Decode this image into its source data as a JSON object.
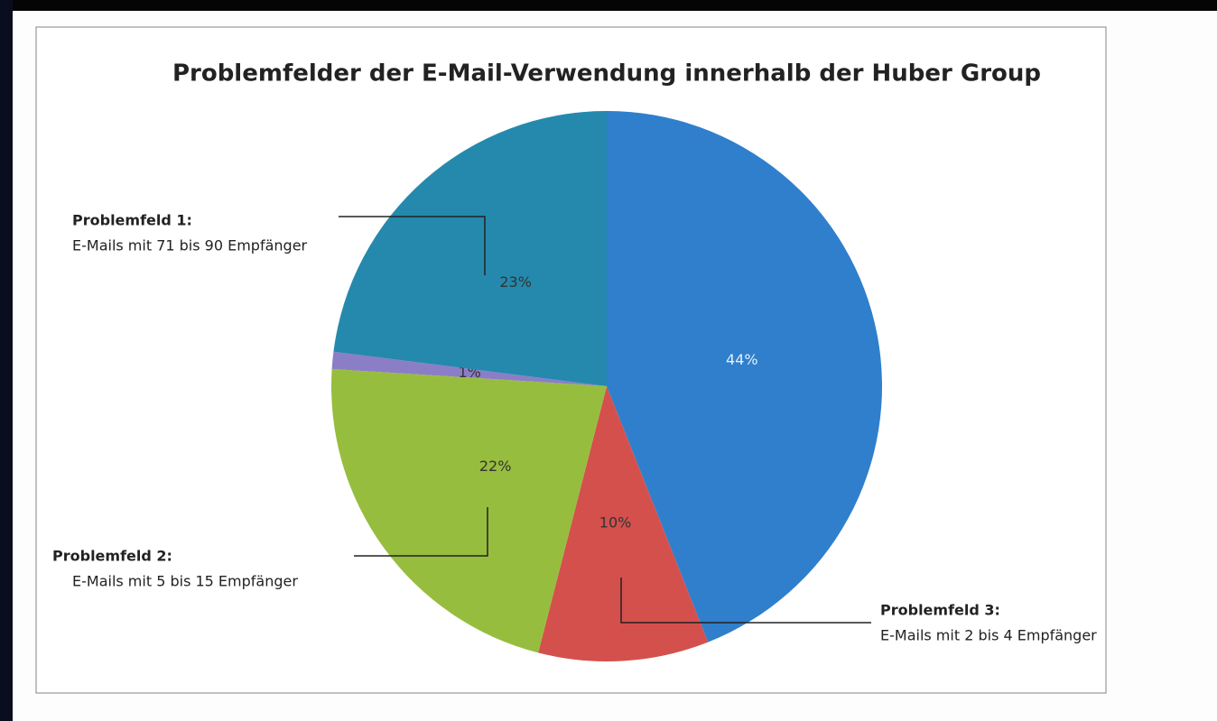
{
  "chart_data": {
    "type": "pie",
    "title": "Problemfelder der E-Mail-Verwendung innerhalb der Huber Group",
    "categories": [
      null,
      "Problemfeld 3:",
      "Problemfeld 2:",
      null,
      "Problemfeld 1:"
    ],
    "category_notes": [
      null,
      "E-Mails mit 2 bis 4 Empfänger",
      "E-Mails mit 5 bis 15 Empfänger",
      null,
      "E-Mails mit 71 bis 90 Empfänger"
    ],
    "values": [
      44,
      10,
      22,
      1,
      23
    ],
    "value_labels": [
      "44%",
      "10%",
      "22%",
      "1%",
      "23%"
    ],
    "colors": [
      "#2f7fcc",
      "#d4504c",
      "#97bd3f",
      "#8b7ec6",
      "#2589ad"
    ]
  }
}
